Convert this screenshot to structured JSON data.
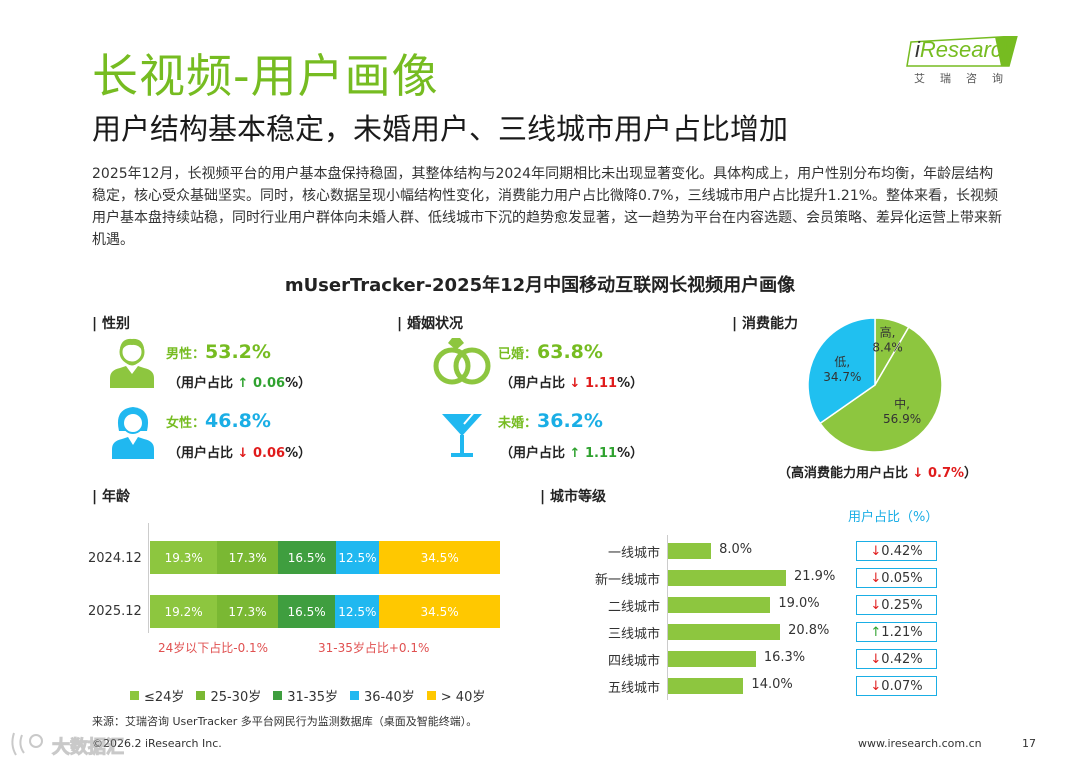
{
  "header": {
    "title": "长视频-用户画像",
    "subtitle": "用户结构基本稳定，未婚用户、三线城市用户占比增加",
    "logo_text_i": "i",
    "logo_text_rest": "Research",
    "logo_cn": "艾瑞咨询"
  },
  "intro": "2025年12月，长视频平台的用户基本盘保持稳固，其整体结构与2024年同期相比未出现显著变化。具体构成上，用户性别分布均衡，年龄层结构稳定，核心受众基础坚实。同时，核心数据呈现小幅结构性变化，消费能力用户占比微降0.7%，三线城市用户占比提升1.21%。整体来看，长视频用户基本盘持续站稳，同时行业用户群体向未婚人群、低线城市下沉的趋势愈发显著，这一趋势为平台在内容选题、会员策略、差异化运营上带来新机遇。",
  "chart_title": "mUserTracker-2025年12月中国移动互联网长视频用户画像",
  "colors": {
    "green": "#76bc21",
    "blue": "#1aaee5",
    "down_red": "#e01b1b",
    "up_green": "#2fa22f",
    "age_colors": [
      "#8dc63f",
      "#7ab833",
      "#3f9e3f",
      "#20b8f0",
      "#ffc800"
    ],
    "pie_colors": {
      "high": "#8dc63f",
      "mid": "#8dc63f",
      "low": "#20c0f0"
    }
  },
  "chart_data": [
    {
      "type": "table",
      "section": "| 性别",
      "items": [
        {
          "icon": "male-user-icon",
          "label": "男性：",
          "value": "53.2%",
          "change_prefix": "（用户占比",
          "arrow": "↑",
          "change": "0.06",
          "change_suffix": "%）",
          "direction": "up"
        },
        {
          "icon": "female-user-icon",
          "label": "女性：",
          "value": "46.8%",
          "change_prefix": "（用户占比",
          "arrow": "↓",
          "change": "0.06",
          "change_suffix": "%）",
          "direction": "down"
        }
      ]
    },
    {
      "type": "table",
      "section": "| 婚姻状况",
      "items": [
        {
          "icon": "wedding-rings-icon",
          "label": "已婚：",
          "value": "63.8%",
          "change_prefix": "（用户占比",
          "arrow": "↓",
          "change": "1.11",
          "change_suffix": "%）",
          "direction": "down"
        },
        {
          "icon": "cocktail-glass-icon",
          "label": "未婚：",
          "value": "36.2%",
          "change_prefix": "（用户占比",
          "arrow": "↑",
          "change": "1.11",
          "change_suffix": "%）",
          "direction": "up"
        }
      ]
    },
    {
      "type": "pie",
      "section": "| 消费能力",
      "slices": [
        {
          "label": "高,",
          "value": 8.4,
          "display": "8.4%"
        },
        {
          "label": "中,",
          "value": 56.9,
          "display": "56.9%"
        },
        {
          "label": "低,",
          "value": 34.7,
          "display": "34.7%"
        }
      ],
      "note_prefix": "（高消费能力用户占比",
      "note_arrow": "↓",
      "note_change": "0.7%",
      "note_suffix": "）"
    },
    {
      "type": "bar",
      "orientation": "horizontal-stacked",
      "section": "| 年龄",
      "categories": [
        "2024.12",
        "2025.12"
      ],
      "series": [
        {
          "name": "≤24岁",
          "values": [
            19.3,
            19.2
          ],
          "labels": [
            "19.3%",
            "19.2%"
          ]
        },
        {
          "name": "25-30岁",
          "values": [
            17.3,
            17.3
          ],
          "labels": [
            "17.3%",
            "17.3%"
          ]
        },
        {
          "name": "31-35岁",
          "values": [
            16.5,
            16.5
          ],
          "labels": [
            "16.5%",
            "16.5%"
          ]
        },
        {
          "name": "36-40岁",
          "values": [
            12.5,
            12.5
          ],
          "labels": [
            "12.5%",
            "12.5%"
          ]
        },
        {
          "name": "> 40岁",
          "values": [
            34.5,
            34.5
          ],
          "labels": [
            "34.5%",
            "34.5%"
          ]
        }
      ],
      "annotations": [
        "24岁以下占比-0.1%",
        "31-35岁占比+0.1%"
      ]
    },
    {
      "type": "bar",
      "orientation": "horizontal",
      "section": "| 城市等级",
      "categories": [
        "一线城市",
        "新一线城市",
        "二线城市",
        "三线城市",
        "四线城市",
        "五线城市"
      ],
      "values": [
        8.0,
        21.9,
        19.0,
        20.8,
        16.3,
        14.0
      ],
      "value_labels": [
        "8.0%",
        "21.9%",
        "19.0%",
        "20.8%",
        "16.3%",
        "14.0%"
      ],
      "ratio_header": "用户占比（%）",
      "ratio_changes": [
        {
          "arrow": "↓",
          "text": "0.42%",
          "direction": "down"
        },
        {
          "arrow": "↓",
          "text": "0.05%",
          "direction": "down"
        },
        {
          "arrow": "↓",
          "text": "0.25%",
          "direction": "down"
        },
        {
          "arrow": "↑",
          "text": "1.21%",
          "direction": "up"
        },
        {
          "arrow": "↓",
          "text": "0.42%",
          "direction": "down"
        },
        {
          "arrow": "↓",
          "text": "0.07%",
          "direction": "down"
        }
      ]
    }
  ],
  "footer": {
    "source": "来源：艾瑞咨询 UserTracker 多平台网民行为监测数据库（桌面及智能终端）。",
    "copyright": "©2026.2 iResearch Inc.",
    "website": "www.iresearch.com.cn",
    "page": "17",
    "watermark": "大数据汇"
  }
}
